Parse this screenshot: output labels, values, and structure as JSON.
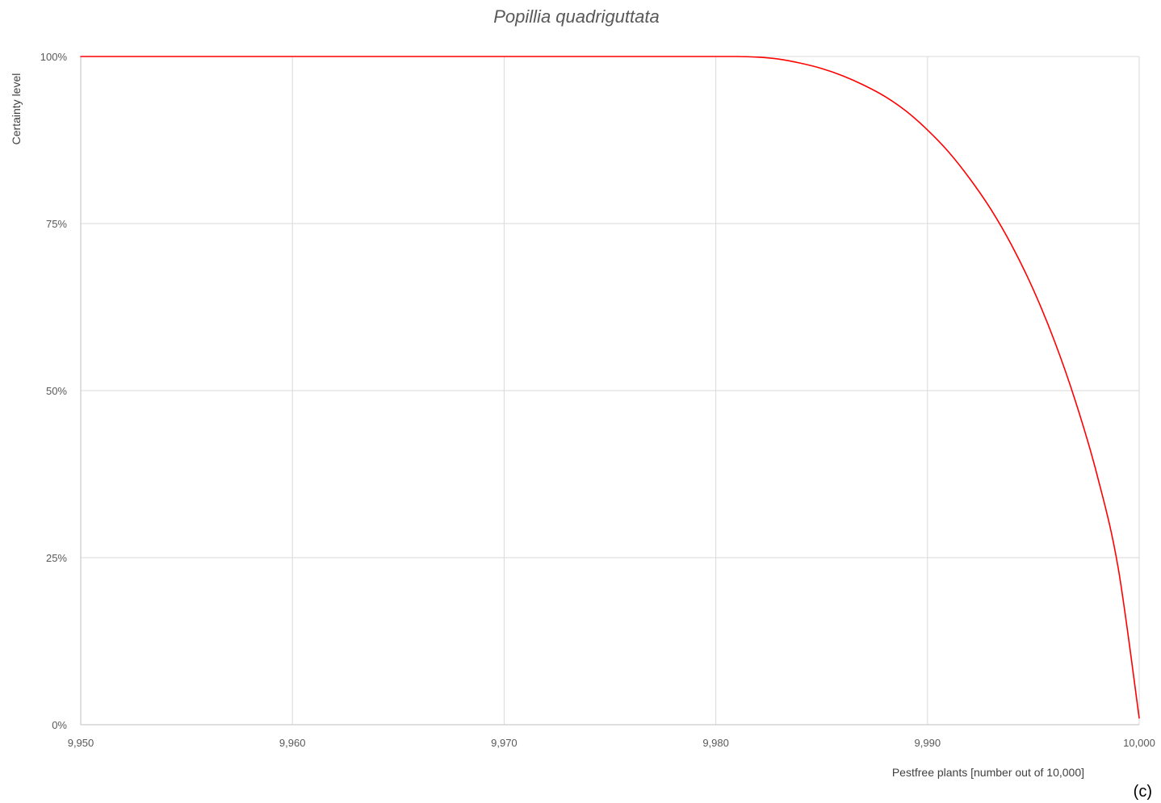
{
  "chart_data": {
    "type": "line",
    "title": "Popillia quadriguttata",
    "xlabel": "Pestfree plants [number out of 10,000]",
    "ylabel": "Certainty level",
    "panel_label": "(c)",
    "xlim": [
      9950,
      10000
    ],
    "ylim": [
      0,
      1
    ],
    "x_ticks": [
      9950,
      9960,
      9970,
      9980,
      9990,
      10000
    ],
    "x_tick_labels": [
      "9,950",
      "9,960",
      "9,970",
      "9,980",
      "9,990",
      "10,000"
    ],
    "y_ticks": [
      0,
      0.25,
      0.5,
      0.75,
      1
    ],
    "y_tick_labels": [
      "0%",
      "25%",
      "50%",
      "75%",
      "100%"
    ],
    "grid": true,
    "series": [
      {
        "color": "#ff0000",
        "x": [
          9950,
          9960,
          9970,
          9980,
          9981,
          9982,
          9983,
          9984,
          9985,
          9986,
          9987,
          9988,
          9989,
          9990,
          9991,
          9992,
          9993,
          9994,
          9995,
          9996,
          9997,
          9998,
          9999,
          10000
        ],
        "y": [
          1.0,
          1.0,
          1.0,
          1.0,
          1.0,
          0.999,
          0.996,
          0.99,
          0.982,
          0.971,
          0.957,
          0.94,
          0.918,
          0.89,
          0.857,
          0.817,
          0.771,
          0.716,
          0.651,
          0.574,
          0.483,
          0.375,
          0.236,
          0.01
        ]
      }
    ]
  }
}
